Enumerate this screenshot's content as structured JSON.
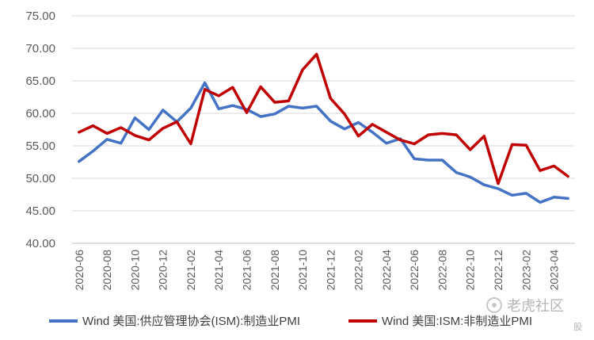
{
  "chart_data": {
    "type": "line",
    "title": "",
    "xlabel": "",
    "ylabel": "",
    "ylim": [
      40,
      75
    ],
    "yticks": [
      "40.00",
      "45.00",
      "50.00",
      "55.00",
      "60.00",
      "65.00",
      "70.00",
      "75.00"
    ],
    "grid": "horizontal",
    "legend_position": "bottom",
    "x": [
      "2020-06",
      "2020-07",
      "2020-08",
      "2020-09",
      "2020-10",
      "2020-11",
      "2020-12",
      "2021-01",
      "2021-02",
      "2021-03",
      "2021-04",
      "2021-05",
      "2021-06",
      "2021-07",
      "2021-08",
      "2021-09",
      "2021-10",
      "2021-11",
      "2021-12",
      "2022-01",
      "2022-02",
      "2022-03",
      "2022-04",
      "2022-05",
      "2022-06",
      "2022-07",
      "2022-08",
      "2022-09",
      "2022-10",
      "2022-11",
      "2022-12",
      "2023-01",
      "2023-02",
      "2023-03",
      "2023-04",
      "2023-05"
    ],
    "xtick_labels": [
      "2020-06",
      "2020-08",
      "2020-10",
      "2020-12",
      "2021-02",
      "2021-04",
      "2021-06",
      "2021-08",
      "2021-10",
      "2021-12",
      "2022-02",
      "2022-04",
      "2022-06",
      "2022-08",
      "2022-10",
      "2022-12",
      "2023-02",
      "2023-04"
    ],
    "series": [
      {
        "name": "Wind 美国:供应管理协会(ISM):制造业PMI",
        "color": "#4472c4",
        "values": [
          52.6,
          54.2,
          56.0,
          55.4,
          59.3,
          57.5,
          60.5,
          58.7,
          60.8,
          64.7,
          60.7,
          61.2,
          60.6,
          59.5,
          59.9,
          61.1,
          60.8,
          61.1,
          58.8,
          57.6,
          58.6,
          57.1,
          55.4,
          56.1,
          53.0,
          52.8,
          52.8,
          50.9,
          50.2,
          49.0,
          48.4,
          47.4,
          47.7,
          46.3,
          47.1,
          46.9
        ]
      },
      {
        "name": "Wind 美国:ISM:非制造业PMI",
        "color": "#c00000",
        "values": [
          57.1,
          58.1,
          56.9,
          57.8,
          56.6,
          55.9,
          57.7,
          58.7,
          55.3,
          63.7,
          62.7,
          64.0,
          60.1,
          64.1,
          61.7,
          61.9,
          66.7,
          69.1,
          62.3,
          59.9,
          56.5,
          58.3,
          57.1,
          55.9,
          55.3,
          56.7,
          56.9,
          56.7,
          54.4,
          56.5,
          49.2,
          55.2,
          55.1,
          51.2,
          51.9,
          50.3
        ]
      }
    ]
  },
  "watermark": {
    "text": "老虎社区",
    "subtext": "股"
  }
}
